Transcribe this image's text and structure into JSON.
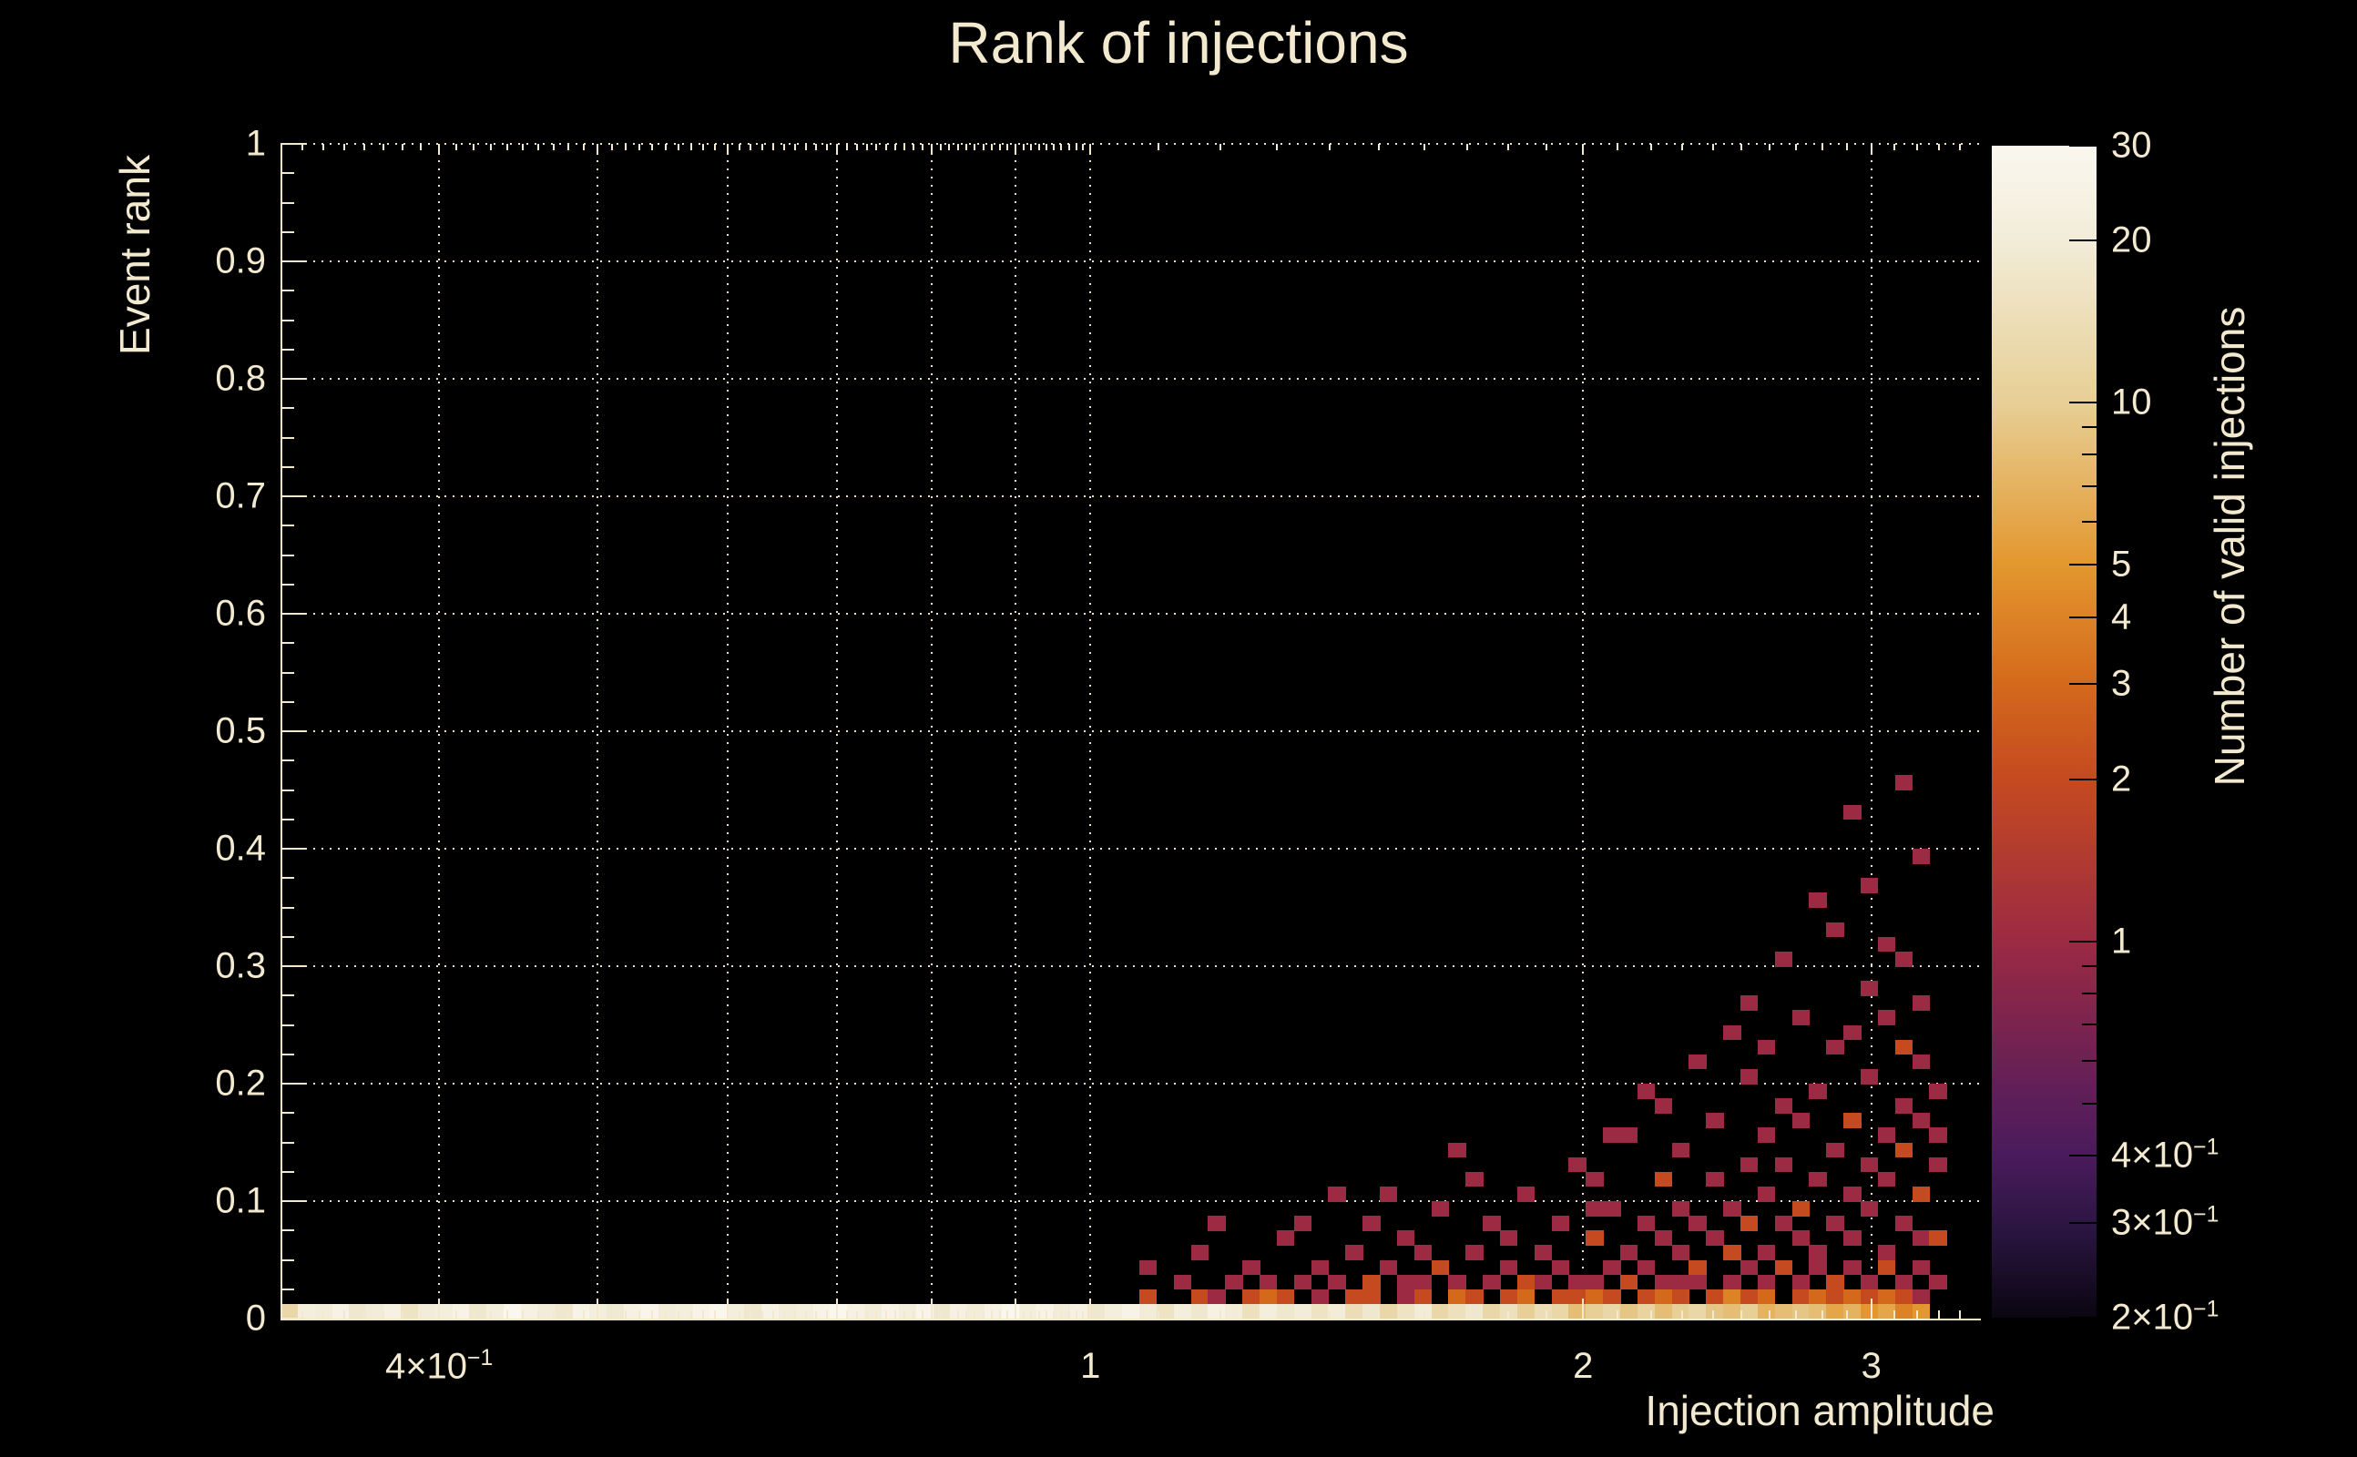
{
  "page": {
    "background": "#000000",
    "text_color": "#f2e9cf"
  },
  "chart_data": {
    "type": "heatmap",
    "title": "Rank of injections",
    "xlabel": "Injection amplitude",
    "ylabel": "Event rank",
    "zlabel": "Number of valid injections",
    "x_scale": "log",
    "x_range": [
      0.32,
      3.5
    ],
    "y_scale": "linear",
    "y_range": [
      0,
      1
    ],
    "z_scale": "log",
    "z_range": [
      0.2,
      30
    ],
    "grid_on": true,
    "legend_position": "right-colorbar",
    "x_ticks": [
      {
        "v": 0.4,
        "label": "4×10",
        "sup": "−1"
      },
      {
        "v": 1,
        "label": "1",
        "sup": ""
      },
      {
        "v": 2,
        "label": "2",
        "sup": ""
      },
      {
        "v": 3,
        "label": "3",
        "sup": ""
      }
    ],
    "x_gridlines": [
      0.4,
      0.5,
      0.6,
      0.7,
      0.8,
      0.9,
      1,
      2,
      3
    ],
    "y_ticks": [
      {
        "v": 0,
        "label": "0"
      },
      {
        "v": 0.1,
        "label": "0.1"
      },
      {
        "v": 0.2,
        "label": "0.2"
      },
      {
        "v": 0.3,
        "label": "0.3"
      },
      {
        "v": 0.4,
        "label": "0.4"
      },
      {
        "v": 0.5,
        "label": "0.5"
      },
      {
        "v": 0.6,
        "label": "0.6"
      },
      {
        "v": 0.7,
        "label": "0.7"
      },
      {
        "v": 0.8,
        "label": "0.8"
      },
      {
        "v": 0.9,
        "label": "0.9"
      },
      {
        "v": 1,
        "label": "1"
      }
    ],
    "z_ticks": [
      {
        "v": 30,
        "label": "30",
        "sup": ""
      },
      {
        "v": 20,
        "label": "20",
        "sup": ""
      },
      {
        "v": 10,
        "label": "10",
        "sup": ""
      },
      {
        "v": 5,
        "label": "5",
        "sup": ""
      },
      {
        "v": 4,
        "label": "4",
        "sup": ""
      },
      {
        "v": 3,
        "label": "3",
        "sup": ""
      },
      {
        "v": 2,
        "label": "2",
        "sup": ""
      },
      {
        "v": 1,
        "label": "1",
        "sup": ""
      },
      {
        "v": 0.4,
        "label": "4×10",
        "sup": "−1"
      },
      {
        "v": 0.3,
        "label": "3×10",
        "sup": "−1"
      },
      {
        "v": 0.2,
        "label": "2×10",
        "sup": "−1"
      }
    ],
    "z_minor_ticks": [
      9,
      8,
      7,
      6,
      0.9,
      0.8,
      0.7,
      0.6,
      0.5
    ],
    "colormap": [
      [
        0.2,
        "#0a0611"
      ],
      [
        0.3,
        "#2d1644"
      ],
      [
        0.4,
        "#4a1b5c"
      ],
      [
        0.5,
        "#5c1e59"
      ],
      [
        1,
        "#9c2a43"
      ],
      [
        2,
        "#c54a20"
      ],
      [
        3,
        "#d4691c"
      ],
      [
        5,
        "#e3972e"
      ],
      [
        10,
        "#e7cf95"
      ],
      [
        20,
        "#f2ecd8"
      ],
      [
        30,
        "#faf7ef"
      ]
    ],
    "grid": {
      "nx": 99,
      "ny": 80
    },
    "bottom_row_counts": [
      12,
      22,
      20,
      25,
      18,
      20,
      24,
      16,
      20,
      22,
      26,
      18,
      22,
      30,
      24,
      20,
      18,
      26,
      22,
      19,
      24,
      28,
      20,
      22,
      26,
      30,
      22,
      18,
      25,
      20,
      22,
      26,
      30,
      24,
      20,
      26,
      22,
      28,
      18,
      24,
      20,
      25,
      30,
      22,
      26,
      20,
      24,
      18,
      22,
      26,
      20,
      16,
      22,
      18,
      24,
      20,
      15,
      22,
      18,
      20,
      16,
      20,
      14,
      18,
      12,
      16,
      20,
      12,
      15,
      18,
      12,
      15,
      10,
      14,
      12,
      8,
      10,
      12,
      9,
      11,
      8,
      10,
      12,
      9,
      8,
      10,
      7,
      8,
      9,
      8,
      6,
      7,
      5,
      6,
      4,
      5
    ],
    "cells": [
      [
        50,
        1,
        2
      ],
      [
        53,
        1,
        2
      ],
      [
        54,
        1,
        1
      ],
      [
        56,
        1,
        2
      ],
      [
        57,
        1,
        3
      ],
      [
        58,
        1,
        2
      ],
      [
        60,
        1,
        1
      ],
      [
        62,
        1,
        2
      ],
      [
        63,
        1,
        2
      ],
      [
        65,
        1,
        1
      ],
      [
        66,
        1,
        2
      ],
      [
        68,
        1,
        3
      ],
      [
        69,
        1,
        2
      ],
      [
        71,
        1,
        2
      ],
      [
        72,
        1,
        3
      ],
      [
        74,
        1,
        2
      ],
      [
        75,
        1,
        2
      ],
      [
        76,
        1,
        3
      ],
      [
        77,
        1,
        2
      ],
      [
        79,
        1,
        2
      ],
      [
        80,
        1,
        3
      ],
      [
        81,
        1,
        2
      ],
      [
        83,
        1,
        2
      ],
      [
        84,
        1,
        4
      ],
      [
        85,
        1,
        2
      ],
      [
        86,
        1,
        3
      ],
      [
        88,
        1,
        2
      ],
      [
        89,
        1,
        3
      ],
      [
        90,
        1,
        2
      ],
      [
        91,
        1,
        3
      ],
      [
        92,
        1,
        2
      ],
      [
        93,
        1,
        3
      ],
      [
        94,
        1,
        2
      ],
      [
        95,
        1,
        1
      ],
      [
        50,
        3,
        1
      ],
      [
        52,
        2,
        1
      ],
      [
        53,
        4,
        1
      ],
      [
        55,
        2,
        1
      ],
      [
        56,
        3,
        1
      ],
      [
        57,
        2,
        1
      ],
      [
        58,
        5,
        1
      ],
      [
        59,
        2,
        1
      ],
      [
        60,
        3,
        1
      ],
      [
        61,
        8,
        1
      ],
      [
        54,
        6,
        1
      ],
      [
        59,
        6,
        1
      ],
      [
        61,
        2,
        1
      ],
      [
        62,
        4,
        1
      ],
      [
        63,
        2,
        2
      ],
      [
        63,
        6,
        1
      ],
      [
        64,
        3,
        1
      ],
      [
        65,
        2,
        1
      ],
      [
        65,
        5,
        1
      ],
      [
        66,
        4,
        1
      ],
      [
        66,
        2,
        1
      ],
      [
        67,
        3,
        2
      ],
      [
        67,
        7,
        1
      ],
      [
        68,
        2,
        1
      ],
      [
        69,
        4,
        1
      ],
      [
        69,
        9,
        1
      ],
      [
        70,
        2,
        1
      ],
      [
        70,
        6,
        1
      ],
      [
        71,
        3,
        1
      ],
      [
        71,
        5,
        1
      ],
      [
        72,
        2,
        2
      ],
      [
        72,
        8,
        1
      ],
      [
        73,
        4,
        1
      ],
      [
        73,
        2,
        1
      ],
      [
        74,
        6,
        1
      ],
      [
        74,
        3,
        1
      ],
      [
        75,
        2,
        1
      ],
      [
        75,
        10,
        1
      ],
      [
        64,
        8,
        1
      ],
      [
        68,
        11,
        1
      ],
      [
        76,
        2,
        1
      ],
      [
        76,
        5,
        2
      ],
      [
        76,
        9,
        1
      ],
      [
        76,
        7,
        1
      ],
      [
        77,
        3,
        1
      ],
      [
        77,
        7,
        1
      ],
      [
        77,
        12,
        1
      ],
      [
        78,
        2,
        2
      ],
      [
        78,
        4,
        1
      ],
      [
        78,
        12,
        1
      ],
      [
        79,
        3,
        1
      ],
      [
        79,
        6,
        1
      ],
      [
        79,
        15,
        1
      ],
      [
        80,
        2,
        1
      ],
      [
        80,
        5,
        1
      ],
      [
        80,
        9,
        2
      ],
      [
        80,
        14,
        1
      ],
      [
        81,
        4,
        1
      ],
      [
        81,
        7,
        1
      ],
      [
        81,
        11,
        1
      ],
      [
        81,
        2,
        1
      ],
      [
        82,
        2,
        1
      ],
      [
        82,
        6,
        1
      ],
      [
        82,
        3,
        2
      ],
      [
        82,
        17,
        1
      ],
      [
        83,
        5,
        1
      ],
      [
        83,
        9,
        1
      ],
      [
        83,
        13,
        1
      ],
      [
        84,
        2,
        1
      ],
      [
        84,
        7,
        1
      ],
      [
        84,
        4,
        2
      ],
      [
        84,
        19,
        1
      ],
      [
        85,
        3,
        1
      ],
      [
        85,
        6,
        2
      ],
      [
        85,
        10,
        1
      ],
      [
        85,
        16,
        1
      ],
      [
        85,
        21,
        1
      ],
      [
        86,
        2,
        1
      ],
      [
        86,
        4,
        1
      ],
      [
        86,
        8,
        1
      ],
      [
        86,
        12,
        1
      ],
      [
        86,
        18,
        1
      ],
      [
        87,
        3,
        2
      ],
      [
        87,
        6,
        1
      ],
      [
        87,
        10,
        1
      ],
      [
        87,
        14,
        1
      ],
      [
        87,
        24,
        1
      ],
      [
        88,
        2,
        1
      ],
      [
        88,
        5,
        1
      ],
      [
        88,
        7,
        2
      ],
      [
        88,
        13,
        1
      ],
      [
        88,
        20,
        1
      ],
      [
        89,
        3,
        1
      ],
      [
        89,
        9,
        1
      ],
      [
        89,
        4,
        1
      ],
      [
        89,
        15,
        1
      ],
      [
        89,
        28,
        1
      ],
      [
        90,
        2,
        2
      ],
      [
        90,
        6,
        1
      ],
      [
        90,
        11,
        1
      ],
      [
        90,
        18,
        1
      ],
      [
        90,
        26,
        1
      ],
      [
        91,
        3,
        1
      ],
      [
        91,
        5,
        1
      ],
      [
        91,
        8,
        1
      ],
      [
        91,
        13,
        2
      ],
      [
        91,
        19,
        1
      ],
      [
        91,
        34,
        1
      ],
      [
        92,
        2,
        1
      ],
      [
        92,
        7,
        1
      ],
      [
        92,
        10,
        1
      ],
      [
        92,
        16,
        1
      ],
      [
        92,
        22,
        1
      ],
      [
        92,
        29,
        1
      ],
      [
        93,
        4,
        1
      ],
      [
        93,
        3,
        2
      ],
      [
        93,
        9,
        1
      ],
      [
        93,
        12,
        1
      ],
      [
        93,
        20,
        1
      ],
      [
        93,
        25,
        1
      ],
      [
        94,
        2,
        1
      ],
      [
        94,
        6,
        1
      ],
      [
        94,
        11,
        2
      ],
      [
        94,
        14,
        1
      ],
      [
        94,
        18,
        2
      ],
      [
        94,
        24,
        1
      ],
      [
        94,
        36,
        1
      ],
      [
        95,
        3,
        1
      ],
      [
        95,
        5,
        1
      ],
      [
        95,
        8,
        2
      ],
      [
        95,
        13,
        1
      ],
      [
        95,
        17,
        1
      ],
      [
        95,
        21,
        1
      ],
      [
        95,
        31,
        1
      ],
      [
        96,
        2,
        1
      ],
      [
        96,
        5,
        2
      ],
      [
        96,
        10,
        1
      ],
      [
        96,
        12,
        1
      ],
      [
        96,
        15,
        1
      ]
    ]
  }
}
